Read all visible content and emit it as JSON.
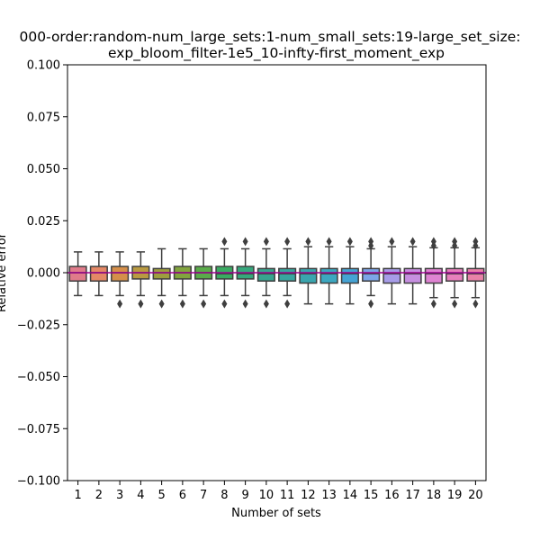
{
  "chart_data": {
    "type": "box",
    "title_line1": "000-order:random-num_large_sets:1-num_small_sets:19-large_set_size:",
    "title_line2": "exp_bloom_filter-1e5_10-infty-first_moment_exp",
    "xlabel": "Number of sets",
    "ylabel": "Relative error",
    "ylim": [
      -0.1,
      0.1
    ],
    "yticks": [
      -0.1,
      -0.075,
      -0.05,
      -0.025,
      0.0,
      0.025,
      0.05,
      0.075,
      0.1
    ],
    "ytick_labels": [
      "−0.100",
      "−0.075",
      "−0.050",
      "−0.025",
      "0.000",
      "0.025",
      "0.050",
      "0.075",
      "0.100"
    ],
    "categories": [
      "1",
      "2",
      "3",
      "4",
      "5",
      "6",
      "7",
      "8",
      "9",
      "10",
      "11",
      "12",
      "13",
      "14",
      "15",
      "16",
      "17",
      "18",
      "19",
      "20"
    ],
    "mean_line_color": "#9b008f",
    "boxes": [
      {
        "q1": -0.004,
        "median": 0.0,
        "q3": 0.003,
        "whislo": -0.011,
        "whishi": 0.01,
        "fliers": [],
        "color": "#e07b8a"
      },
      {
        "q1": -0.004,
        "median": 0.0,
        "q3": 0.003,
        "whislo": -0.011,
        "whishi": 0.01,
        "fliers": [],
        "color": "#e48866"
      },
      {
        "q1": -0.004,
        "median": 0.0,
        "q3": 0.003,
        "whislo": -0.011,
        "whishi": 0.01,
        "fliers": [
          -0.015
        ],
        "color": "#d58f4a"
      },
      {
        "q1": -0.003,
        "median": 0.0,
        "q3": 0.003,
        "whislo": -0.011,
        "whishi": 0.01,
        "fliers": [
          -0.015
        ],
        "color": "#b99a41"
      },
      {
        "q1": -0.003,
        "median": 0.0,
        "q3": 0.002,
        "whislo": -0.011,
        "whishi": 0.0115,
        "fliers": [
          -0.015
        ],
        "color": "#9e9e3e"
      },
      {
        "q1": -0.003,
        "median": 0.0,
        "q3": 0.003,
        "whislo": -0.011,
        "whishi": 0.0115,
        "fliers": [
          -0.015
        ],
        "color": "#82a43e"
      },
      {
        "q1": -0.003,
        "median": 0.0,
        "q3": 0.003,
        "whislo": -0.011,
        "whishi": 0.0115,
        "fliers": [
          -0.015
        ],
        "color": "#5aab4a"
      },
      {
        "q1": -0.003,
        "median": -0.0005,
        "q3": 0.003,
        "whislo": -0.011,
        "whishi": 0.0115,
        "fliers": [
          0.015,
          -0.015
        ],
        "color": "#3aaa62"
      },
      {
        "q1": -0.003,
        "median": -0.0005,
        "q3": 0.003,
        "whislo": -0.011,
        "whishi": 0.0115,
        "fliers": [
          0.015,
          -0.015
        ],
        "color": "#36a77c"
      },
      {
        "q1": -0.004,
        "median": -0.0005,
        "q3": 0.002,
        "whislo": -0.011,
        "whishi": 0.0115,
        "fliers": [
          0.015,
          -0.015
        ],
        "color": "#37a48f"
      },
      {
        "q1": -0.004,
        "median": -0.0005,
        "q3": 0.002,
        "whislo": -0.011,
        "whishi": 0.0115,
        "fliers": [
          0.015,
          -0.015
        ],
        "color": "#38a59f"
      },
      {
        "q1": -0.005,
        "median": -0.0005,
        "q3": 0.002,
        "whislo": -0.015,
        "whishi": 0.0125,
        "fliers": [
          0.015
        ],
        "color": "#3aa5ae"
      },
      {
        "q1": -0.005,
        "median": -0.0005,
        "q3": 0.002,
        "whislo": -0.015,
        "whishi": 0.0125,
        "fliers": [
          0.015
        ],
        "color": "#3ca7c0"
      },
      {
        "q1": -0.005,
        "median": -0.0005,
        "q3": 0.002,
        "whislo": -0.015,
        "whishi": 0.0125,
        "fliers": [
          0.015
        ],
        "color": "#45a3d4"
      },
      {
        "q1": -0.004,
        "median": -0.0005,
        "q3": 0.002,
        "whislo": -0.011,
        "whishi": 0.0115,
        "fliers": [
          0.015,
          0.013,
          -0.015
        ],
        "color": "#7ca5e8"
      },
      {
        "q1": -0.005,
        "median": -0.0005,
        "q3": 0.002,
        "whislo": -0.015,
        "whishi": 0.0125,
        "fliers": [
          0.015
        ],
        "color": "#a79ce8"
      },
      {
        "q1": -0.005,
        "median": -0.0005,
        "q3": 0.002,
        "whislo": -0.015,
        "whishi": 0.0125,
        "fliers": [
          0.015
        ],
        "color": "#c68fe0"
      },
      {
        "q1": -0.005,
        "median": -0.0005,
        "q3": 0.002,
        "whislo": -0.012,
        "whishi": 0.012,
        "fliers": [
          0.015,
          0.013,
          -0.015
        ],
        "color": "#df83d2"
      },
      {
        "q1": -0.004,
        "median": -0.0005,
        "q3": 0.002,
        "whislo": -0.012,
        "whishi": 0.012,
        "fliers": [
          0.015,
          0.013,
          -0.015
        ],
        "color": "#e780bd"
      },
      {
        "q1": -0.004,
        "median": -0.0005,
        "q3": 0.002,
        "whislo": -0.012,
        "whishi": 0.012,
        "fliers": [
          0.015,
          0.013,
          -0.015
        ],
        "color": "#e882a8"
      }
    ]
  }
}
